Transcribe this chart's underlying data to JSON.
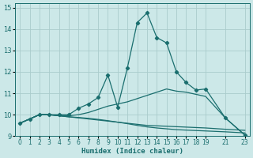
{
  "xlabel": "Humidex (Indice chaleur)",
  "xlim": [
    -0.5,
    23.5
  ],
  "ylim": [
    9,
    15.2
  ],
  "yticks": [
    9,
    10,
    11,
    12,
    13,
    14,
    15
  ],
  "xticks": [
    0,
    1,
    2,
    3,
    4,
    5,
    6,
    7,
    8,
    9,
    10,
    11,
    12,
    13,
    14,
    15,
    16,
    17,
    18,
    19,
    21,
    23
  ],
  "bg_color": "#cce8e8",
  "line_color": "#1a6e6e",
  "grid_color": "#aacccc",
  "lines": [
    {
      "x": [
        0,
        1,
        2,
        3,
        4,
        5,
        6,
        7,
        8,
        9,
        10,
        11,
        12,
        13,
        14,
        15,
        16,
        17,
        18,
        19,
        21,
        23
      ],
      "y": [
        9.6,
        9.8,
        10.0,
        10.0,
        10.0,
        10.0,
        10.3,
        10.5,
        10.8,
        11.85,
        10.35,
        12.2,
        14.3,
        14.75,
        13.6,
        13.35,
        12.0,
        11.5,
        11.15,
        11.2,
        9.85,
        9.05
      ],
      "has_markers": true
    },
    {
      "x": [
        0,
        1,
        2,
        3,
        4,
        5,
        6,
        7,
        8,
        9,
        10,
        11,
        12,
        13,
        14,
        15,
        16,
        17,
        18,
        19,
        21,
        23
      ],
      "y": [
        9.6,
        9.8,
        10.0,
        10.0,
        9.95,
        9.95,
        10.0,
        10.1,
        10.25,
        10.4,
        10.5,
        10.6,
        10.75,
        10.9,
        11.05,
        11.2,
        11.1,
        11.05,
        10.95,
        10.85,
        9.85,
        9.05
      ],
      "has_markers": false
    },
    {
      "x": [
        0,
        1,
        2,
        3,
        4,
        5,
        6,
        7,
        8,
        9,
        10,
        11,
        12,
        13,
        14,
        15,
        16,
        17,
        18,
        19,
        21,
        23
      ],
      "y": [
        9.6,
        9.8,
        10.0,
        10.0,
        9.95,
        9.9,
        9.85,
        9.8,
        9.75,
        9.7,
        9.65,
        9.6,
        9.55,
        9.5,
        9.48,
        9.46,
        9.44,
        9.42,
        9.4,
        9.38,
        9.32,
        9.27
      ],
      "has_markers": false
    },
    {
      "x": [
        0,
        1,
        2,
        3,
        4,
        5,
        6,
        7,
        8,
        9,
        10,
        11,
        12,
        13,
        14,
        15,
        16,
        17,
        18,
        19,
        21,
        23
      ],
      "y": [
        9.6,
        9.8,
        10.0,
        10.0,
        9.95,
        9.9,
        9.87,
        9.83,
        9.78,
        9.72,
        9.65,
        9.58,
        9.5,
        9.43,
        9.38,
        9.34,
        9.3,
        9.28,
        9.26,
        9.24,
        9.2,
        9.15
      ],
      "has_markers": false
    }
  ]
}
